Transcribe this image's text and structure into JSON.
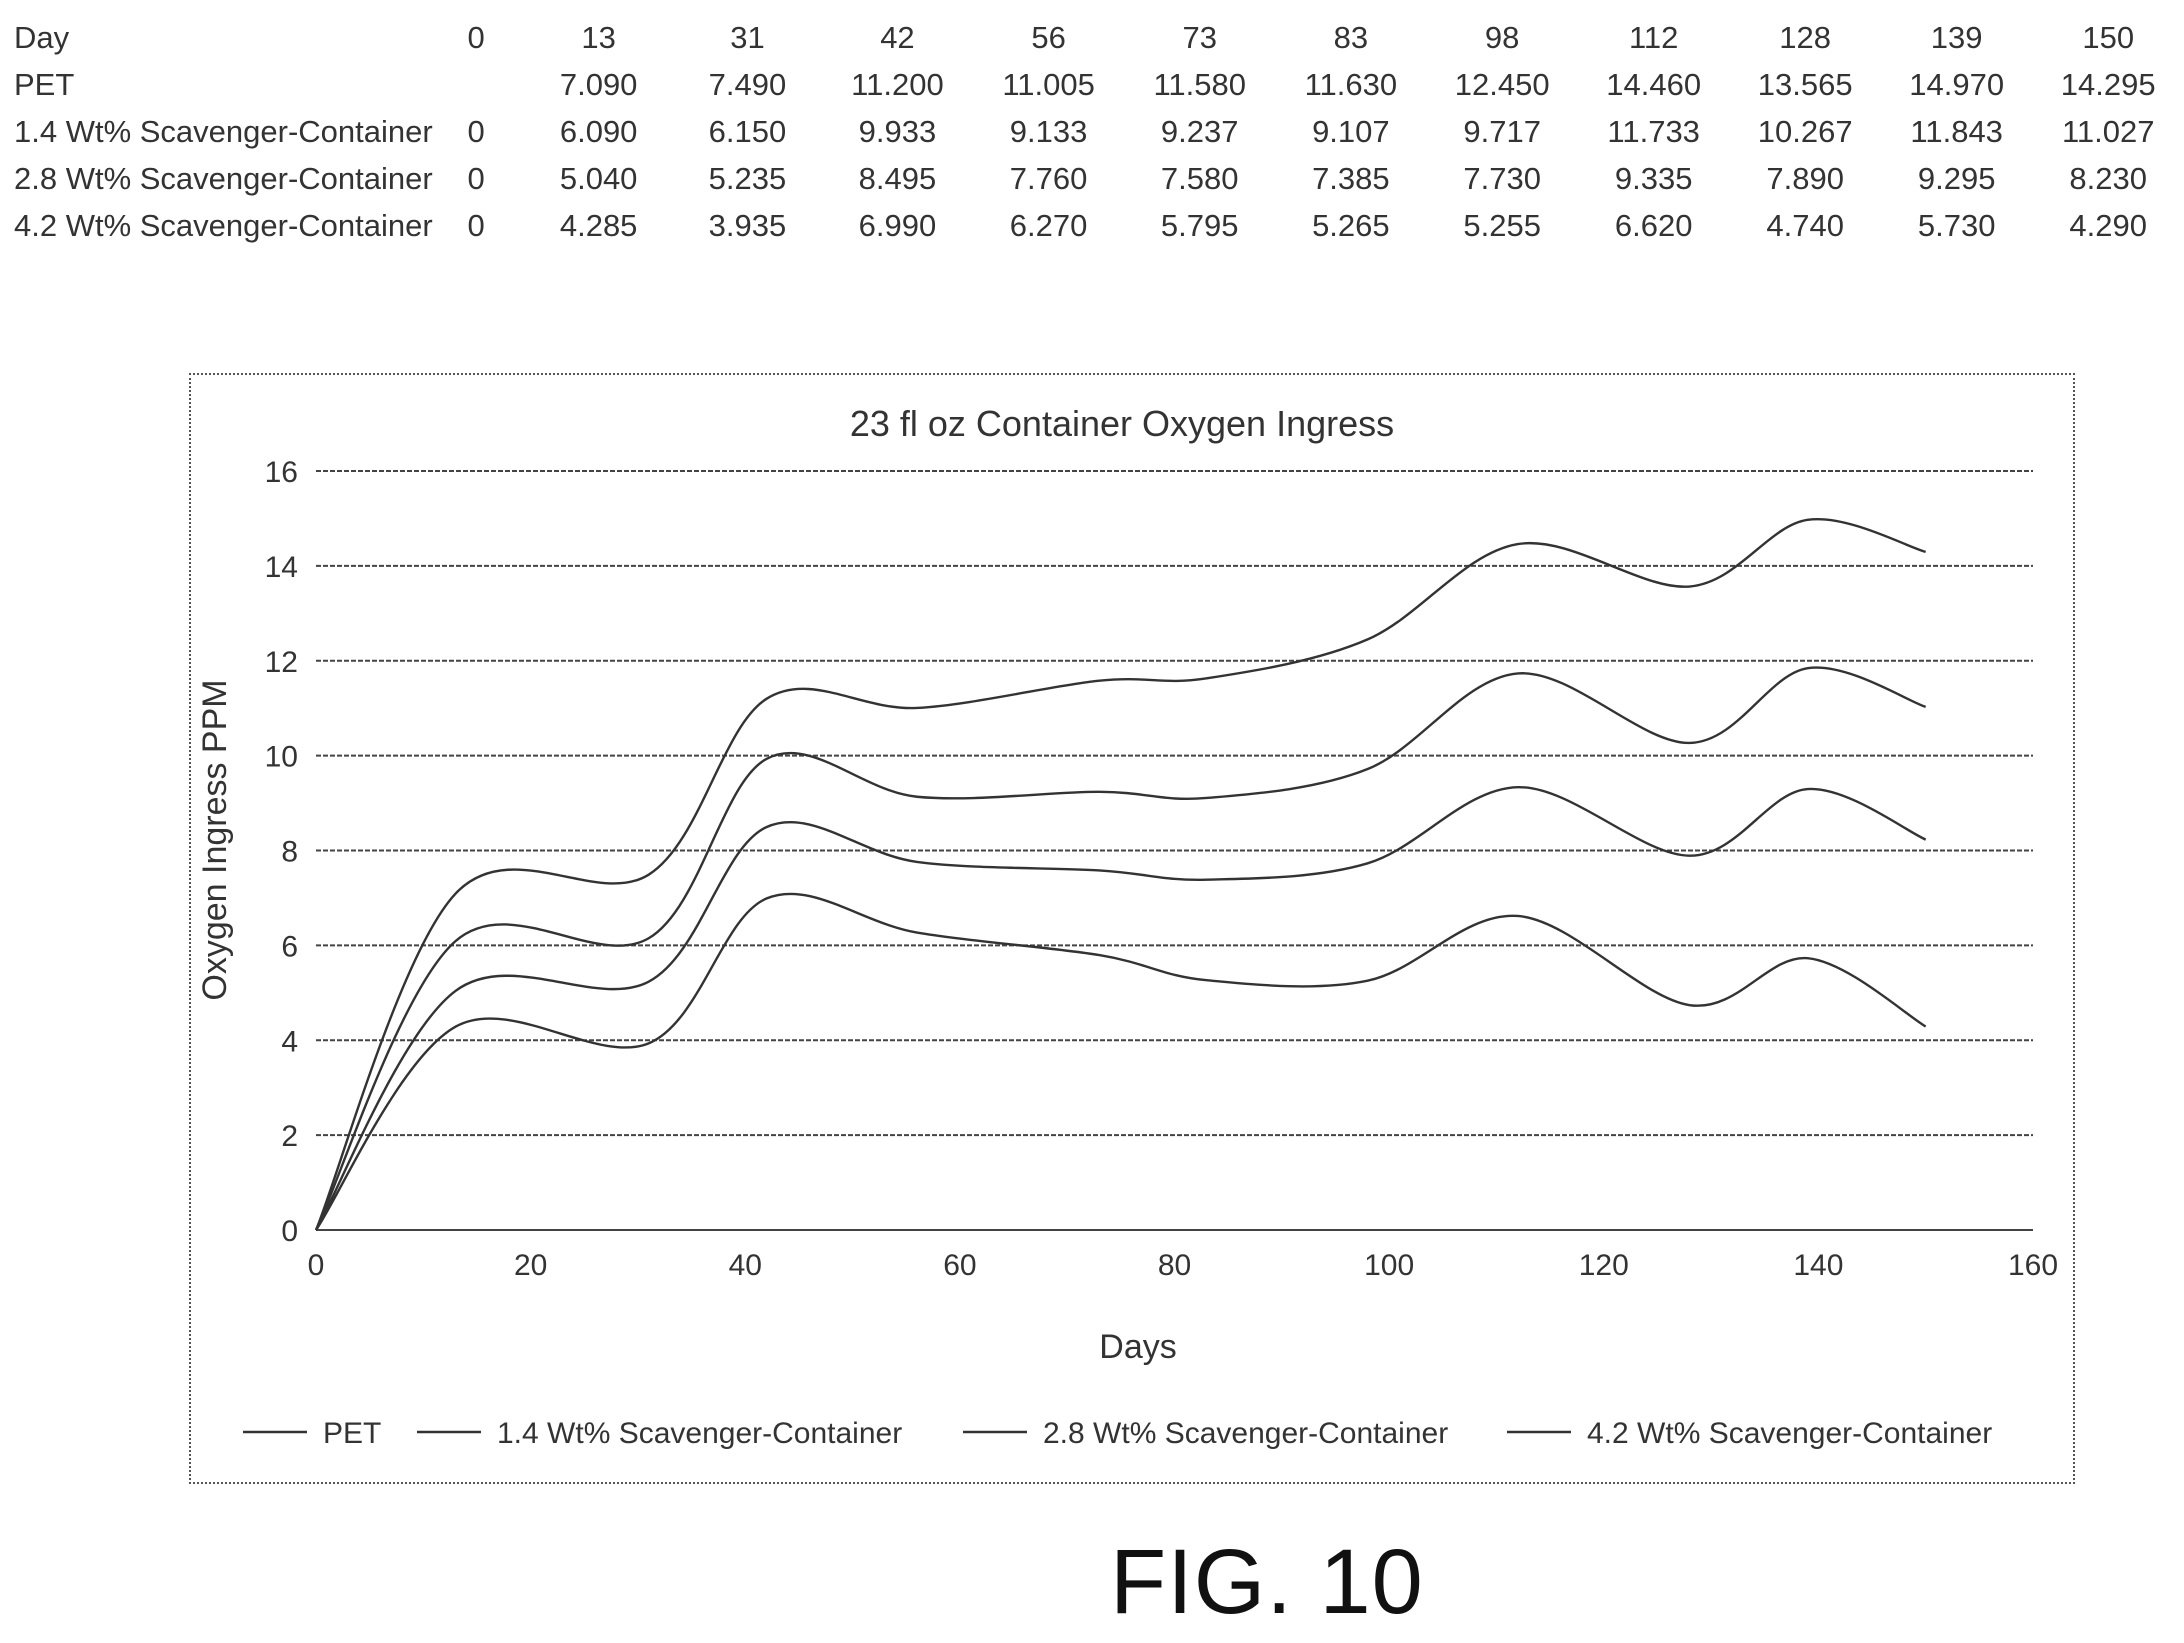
{
  "table": {
    "header_label": "Day",
    "days": [
      "0",
      "13",
      "31",
      "42",
      "56",
      "73",
      "83",
      "98",
      "112",
      "128",
      "139",
      "150"
    ],
    "rows": [
      {
        "label": "PET",
        "values": [
          "",
          "7.090",
          "7.490",
          "11.200",
          "11.005",
          "11.580",
          "11.630",
          "12.450",
          "14.460",
          "13.565",
          "14.970",
          "14.295"
        ]
      },
      {
        "label": "1.4 Wt% Scavenger-Container",
        "values": [
          "0",
          "6.090",
          "6.150",
          "9.933",
          "9.133",
          "9.237",
          "9.107",
          "9.717",
          "11.733",
          "10.267",
          "11.843",
          "11.027"
        ]
      },
      {
        "label": "2.8 Wt% Scavenger-Container",
        "values": [
          "0",
          "5.040",
          "5.235",
          "8.495",
          "7.760",
          "7.580",
          "7.385",
          "7.730",
          "9.335",
          "7.890",
          "9.295",
          "8.230"
        ]
      },
      {
        "label": "4.2 Wt% Scavenger-Container",
        "values": [
          "0",
          "4.285",
          "3.935",
          "6.990",
          "6.270",
          "5.795",
          "5.265",
          "5.255",
          "6.620",
          "4.740",
          "5.730",
          "4.290"
        ]
      }
    ]
  },
  "chart_data": {
    "type": "line",
    "title": "23 fl oz Container Oxygen Ingress",
    "xlabel": "Days",
    "ylabel": "Oxygen Ingress PPM",
    "xlim": [
      0,
      160
    ],
    "ylim": [
      0,
      16
    ],
    "x_ticks": [
      "0",
      "20",
      "40",
      "60",
      "80",
      "100",
      "120",
      "140",
      "160"
    ],
    "y_ticks": [
      "0",
      "2",
      "4",
      "6",
      "8",
      "10",
      "12",
      "14",
      "16"
    ],
    "grid": "horizontal",
    "smoothed": true,
    "legend_position": "bottom",
    "x": [
      0,
      13,
      31,
      42,
      56,
      73,
      83,
      98,
      112,
      128,
      139,
      150
    ],
    "series": [
      {
        "name": "PET",
        "values": [
          0,
          7.09,
          7.49,
          11.2,
          11.005,
          11.58,
          11.63,
          12.45,
          14.46,
          13.565,
          14.97,
          14.295
        ]
      },
      {
        "name": "1.4 Wt% Scavenger-Container",
        "values": [
          0,
          6.09,
          6.15,
          9.933,
          9.133,
          9.237,
          9.107,
          9.717,
          11.733,
          10.267,
          11.843,
          11.027
        ]
      },
      {
        "name": "2.8 Wt% Scavenger-Container",
        "values": [
          0,
          5.04,
          5.235,
          8.495,
          7.76,
          7.58,
          7.385,
          7.73,
          9.335,
          7.89,
          9.295,
          8.23
        ]
      },
      {
        "name": "4.2 Wt% Scavenger-Container",
        "values": [
          0,
          4.285,
          3.935,
          6.99,
          6.27,
          5.795,
          5.265,
          5.255,
          6.62,
          4.74,
          5.73,
          4.29
        ]
      }
    ],
    "line_color": "#333333"
  },
  "figure_label": "FIG. 10"
}
